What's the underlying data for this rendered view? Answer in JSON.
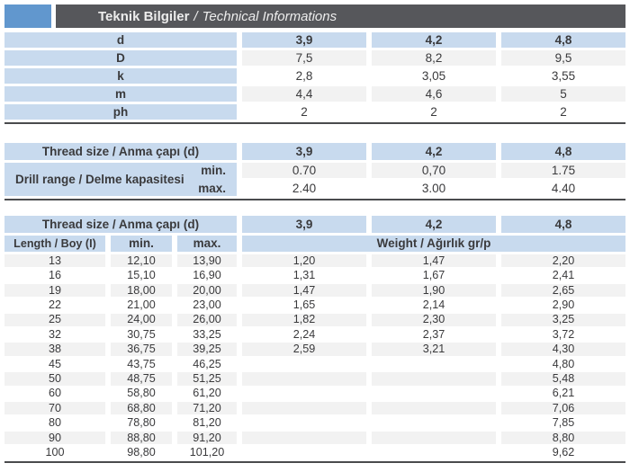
{
  "header": {
    "title_tr": "Teknik Bilgiler",
    "title_sep": "/",
    "title_en": "Technical Informations"
  },
  "t1": {
    "rows": [
      {
        "label": "d",
        "values": [
          "3,9",
          "4,2",
          "4,8"
        ]
      },
      {
        "label": "D",
        "values": [
          "7,5",
          "8,2",
          "9,5"
        ]
      },
      {
        "label": "k",
        "values": [
          "2,8",
          "3,05",
          "3,55"
        ]
      },
      {
        "label": "m",
        "values": [
          "4,4",
          "4,6",
          "5"
        ]
      },
      {
        "label": "ph",
        "values": [
          "2",
          "2",
          "2"
        ]
      }
    ]
  },
  "t2": {
    "thread_label": "Thread size / Anma çapı (d)",
    "sizes": [
      "3,9",
      "4,2",
      "4,8"
    ],
    "range_label": "Drill range / Delme kapasitesi",
    "min_label": "min.",
    "max_label": "max.",
    "min_values": [
      "0.70",
      "0,70",
      "1.75"
    ],
    "max_values": [
      "2.40",
      "3.00",
      "4.40"
    ]
  },
  "t3": {
    "thread_label": "Thread size / Anma çapı (d)",
    "sizes": [
      "3,9",
      "4,2",
      "4,8"
    ],
    "length_label": "Length / Boy (I)",
    "min_label": "min.",
    "max_label": "max.",
    "weight_label": "Weight / Ağırlık gr/p",
    "rows": [
      {
        "len": "13",
        "min": "12,10",
        "max": "13,90",
        "w": [
          "1,20",
          "1,47",
          "2,20"
        ]
      },
      {
        "len": "16",
        "min": "15,10",
        "max": "16,90",
        "w": [
          "1,31",
          "1,67",
          "2,41"
        ]
      },
      {
        "len": "19",
        "min": "18,00",
        "max": "20,00",
        "w": [
          "1,47",
          "1,90",
          "2,65"
        ]
      },
      {
        "len": "22",
        "min": "21,00",
        "max": "23,00",
        "w": [
          "1,65",
          "2,14",
          "2,90"
        ]
      },
      {
        "len": "25",
        "min": "24,00",
        "max": "26,00",
        "w": [
          "1,82",
          "2,30",
          "3,25"
        ]
      },
      {
        "len": "32",
        "min": "30,75",
        "max": "33,25",
        "w": [
          "2,24",
          "2,37",
          "3,72"
        ]
      },
      {
        "len": "38",
        "min": "36,75",
        "max": "39,25",
        "w": [
          "2,59",
          "3,21",
          "4,30"
        ]
      },
      {
        "len": "45",
        "min": "43,75",
        "max": "46,25",
        "w": [
          "",
          "",
          "4,80"
        ]
      },
      {
        "len": "50",
        "min": "48,75",
        "max": "51,25",
        "w": [
          "",
          "",
          "5,48"
        ]
      },
      {
        "len": "60",
        "min": "58,80",
        "max": "61,20",
        "w": [
          "",
          "",
          "6,21"
        ]
      },
      {
        "len": "70",
        "min": "68,80",
        "max": "71,20",
        "w": [
          "",
          "",
          "7,06"
        ]
      },
      {
        "len": "80",
        "min": "78,80",
        "max": "81,20",
        "w": [
          "",
          "",
          "7,85"
        ]
      },
      {
        "len": "90",
        "min": "88,80",
        "max": "91,20",
        "w": [
          "",
          "",
          "8,80"
        ]
      },
      {
        "len": "100",
        "min": "98,80",
        "max": "101,20",
        "w": [
          "",
          "",
          "9,62"
        ]
      }
    ]
  },
  "colors": {
    "accent_blue": "#6197ce",
    "cell_blue": "#c8daee",
    "bar_gray": "#56575b",
    "stripe_gray": "#f2f2f2",
    "border_dark": "#4a4b4d"
  }
}
